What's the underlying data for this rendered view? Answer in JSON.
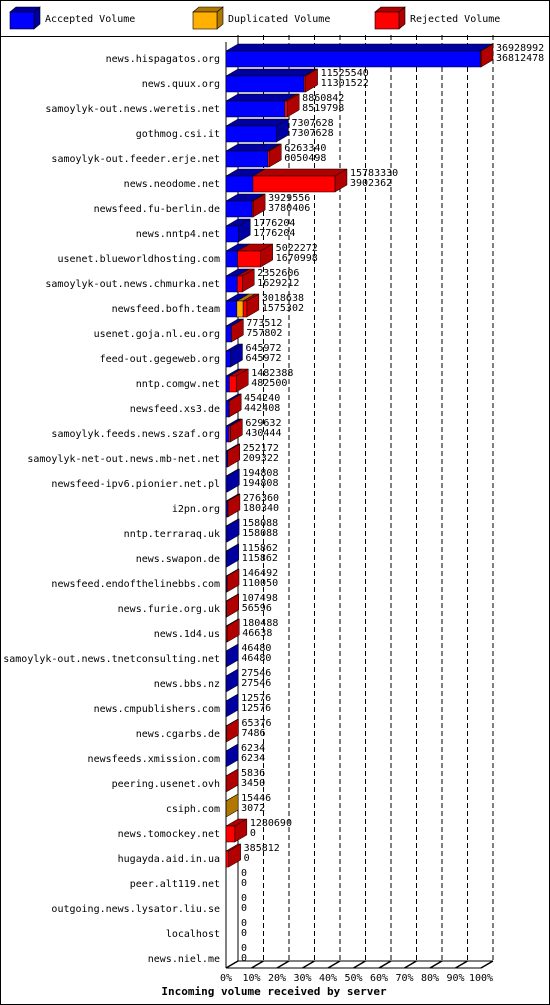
{
  "chart_data": {
    "type": "bar3d",
    "orientation": "horizontal",
    "stacked": true,
    "xlabel": "Incoming volume received by server",
    "categories": [
      "news.hispagatos.org",
      "news.quux.org",
      "samoylyk-out.news.weretis.net",
      "gothmog.csi.it",
      "samoylyk-out.feeder.erje.net",
      "news.neodome.net",
      "newsfeed.fu-berlin.de",
      "news.nntp4.net",
      "usenet.blueworldhosting.com",
      "samoylyk-out.news.chmurka.net",
      "newsfeed.bofh.team",
      "usenet.goja.nl.eu.org",
      "feed-out.gegeweb.org",
      "nntp.comgw.net",
      "newsfeed.xs3.de",
      "samoylyk.feeds.news.szaf.org",
      "samoylyk-net-out.news.mb-net.net",
      "newsfeed-ipv6.pionier.net.pl",
      "i2pn.org",
      "nntp.terraraq.uk",
      "news.swapon.de",
      "newsfeed.endofthelinebbs.com",
      "news.furie.org.uk",
      "news.1d4.us",
      "samoylyk-out.news.tnetconsulting.net",
      "news.bbs.nz",
      "news.cmpublishers.com",
      "news.cgarbs.de",
      "newsfeeds.xmission.com",
      "peering.usenet.ovh",
      "csiph.com",
      "news.tomockey.net",
      "hugayda.aid.in.ua",
      "peer.alt119.net",
      "outgoing.news.lysator.liu.se",
      "localhost",
      "news.niel.me"
    ],
    "totals": [
      36928992,
      11525540,
      8860842,
      7307628,
      6263340,
      15783330,
      3929556,
      1776204,
      5022272,
      2352606,
      3018638,
      773512,
      645972,
      1482388,
      454240,
      629632,
      252172,
      194808,
      276360,
      158088,
      115862,
      146492,
      107498,
      180488,
      46480,
      27546,
      12576,
      65376,
      6234,
      5836,
      15446,
      1280690,
      385812,
      0,
      0,
      0,
      0
    ],
    "series": [
      {
        "name": "Accepted Volume",
        "color": "#0000ff",
        "side": "#0000a0",
        "values": [
          36812478,
          11301522,
          8519798,
          7307628,
          6050498,
          3902362,
          3780406,
          1776204,
          1670998,
          1629212,
          1575302,
          757802,
          645972,
          482500,
          442408,
          430444,
          209322,
          194808,
          180340,
          158088,
          115862,
          110050,
          56596,
          46638,
          46480,
          27546,
          12576,
          7486,
          6234,
          3450,
          3072,
          0,
          0,
          0,
          0,
          0,
          0
        ]
      },
      {
        "name": "Duplicated Volume",
        "color": "#ffb000",
        "side": "#b07800",
        "values": [
          0,
          0,
          0,
          0,
          0,
          0,
          0,
          0,
          0,
          0,
          900000,
          0,
          0,
          0,
          0,
          0,
          0,
          0,
          0,
          0,
          0,
          0,
          0,
          0,
          0,
          0,
          0,
          0,
          0,
          0,
          12374,
          0,
          0,
          0,
          0,
          0,
          0
        ]
      },
      {
        "name": "Rejected Volume",
        "color": "#ff0000",
        "side": "#b00000",
        "values": [
          116514,
          224018,
          341044,
          0,
          212842,
          11880968,
          149150,
          0,
          3351274,
          723394,
          543336,
          15710,
          0,
          999888,
          11832,
          199188,
          42850,
          0,
          96020,
          0,
          0,
          36442,
          50902,
          133850,
          0,
          0,
          0,
          57890,
          0,
          2386,
          0,
          1280690,
          385812,
          0,
          0,
          0,
          0
        ]
      }
    ],
    "xlim": [
      0,
      36928992
    ],
    "xticks": [
      {
        "value": 0,
        "label": "0%"
      },
      {
        "value": 3692899.2,
        "label": "10%"
      },
      {
        "value": 7385798.4,
        "label": "20%"
      },
      {
        "value": 11078697.6,
        "label": "30%"
      },
      {
        "value": 14771596.8,
        "label": "40%"
      },
      {
        "value": 18464496,
        "label": "50%"
      },
      {
        "value": 22157395.2,
        "label": "60%"
      },
      {
        "value": 25850294.4,
        "label": "70%"
      },
      {
        "value": 29543193.6,
        "label": "80%"
      },
      {
        "value": 33236092.8,
        "label": "90%"
      },
      {
        "value": 36928992,
        "label": "100%"
      }
    ],
    "grid": true
  }
}
